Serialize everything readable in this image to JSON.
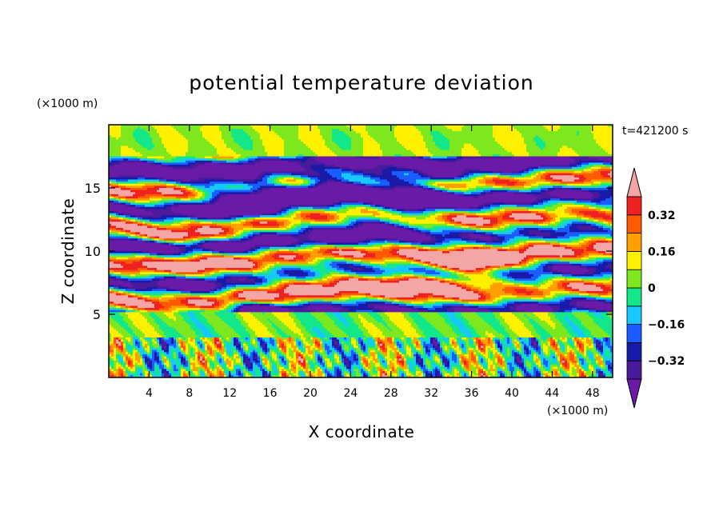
{
  "chart_data": {
    "type": "heatmap",
    "title": "potential temperature deviation",
    "xlabel": "X coordinate",
    "ylabel": "Z coordinate",
    "x_unit": "(×1000 m)",
    "y_unit": "(×1000 m)",
    "time_label": "t=421200 s",
    "xlim": [
      0,
      50
    ],
    "ylim": [
      0,
      20
    ],
    "x_ticks": [
      4,
      8,
      12,
      16,
      20,
      24,
      28,
      32,
      36,
      40,
      44,
      48
    ],
    "y_ticks": [
      5,
      10,
      15
    ],
    "colorbar": {
      "levels": [
        -0.4,
        -0.32,
        -0.24,
        -0.16,
        -0.08,
        0,
        0.08,
        0.16,
        0.24,
        0.32,
        0.4
      ],
      "labeled_levels": [
        0.32,
        0.16,
        0,
        -0.16,
        -0.32
      ],
      "labels": [
        "0.32",
        "0.16",
        "0",
        "−0.16",
        "−0.32"
      ],
      "colors": [
        "#6a1aa8",
        "#4a1a9a",
        "#1a1aa8",
        "#1a5cff",
        "#16c8ff",
        "#12e88a",
        "#7ee81e",
        "#fff000",
        "#ffa000",
        "#ff5a00",
        "#ee2020",
        "#f4a6a6"
      ],
      "extend": "both"
    },
    "layers": {
      "stratosphere_top": {
        "zmin": 17.5,
        "zmax": 20
      },
      "banded_region": {
        "zmin": 5.2,
        "zmax": 17.5
      },
      "mid_calm": {
        "zmin": 3.2,
        "zmax": 5.2
      },
      "boundary_layer": {
        "zmin": 0,
        "zmax": 3.2
      }
    }
  }
}
